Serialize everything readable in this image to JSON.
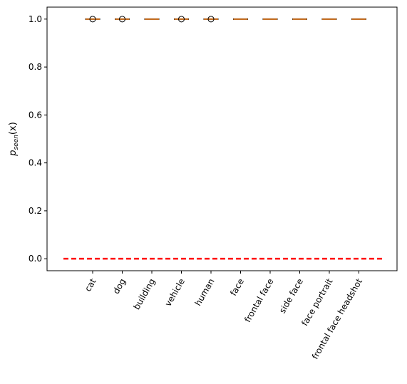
{
  "chart_data": {
    "type": "box",
    "title": "",
    "xlabel": "",
    "ylabel": {
      "base": "p",
      "subscript": "seen",
      "suffix": "(x)"
    },
    "ylim": [
      -0.05,
      1.05
    ],
    "yticks": [
      "0.0",
      "0.2",
      "0.4",
      "0.6",
      "0.8",
      "1.0"
    ],
    "categories": [
      "cat",
      "dog",
      "building",
      "vehicle",
      "human",
      "face",
      "frontal face",
      "side face",
      "face portrait",
      "frontal face headshot"
    ],
    "series": [
      {
        "boxes": [
          {
            "median": 1.0,
            "q1": 1.0,
            "q3": 1.0,
            "whisker_low": 1.0,
            "whisker_high": 1.0,
            "outliers": [
              1.0
            ]
          },
          {
            "median": 1.0,
            "q1": 1.0,
            "q3": 1.0,
            "whisker_low": 1.0,
            "whisker_high": 1.0,
            "outliers": [
              1.0
            ]
          },
          {
            "median": 1.0,
            "q1": 1.0,
            "q3": 1.0,
            "whisker_low": 1.0,
            "whisker_high": 1.0,
            "outliers": []
          },
          {
            "median": 1.0,
            "q1": 1.0,
            "q3": 1.0,
            "whisker_low": 1.0,
            "whisker_high": 1.0,
            "outliers": [
              1.0
            ]
          },
          {
            "median": 1.0,
            "q1": 1.0,
            "q3": 1.0,
            "whisker_low": 1.0,
            "whisker_high": 1.0,
            "outliers": [
              1.0
            ]
          },
          {
            "median": 1.0,
            "q1": 1.0,
            "q3": 1.0,
            "whisker_low": 1.0,
            "whisker_high": 1.0,
            "outliers": []
          },
          {
            "median": 1.0,
            "q1": 1.0,
            "q3": 1.0,
            "whisker_low": 1.0,
            "whisker_high": 1.0,
            "outliers": []
          },
          {
            "median": 1.0,
            "q1": 1.0,
            "q3": 1.0,
            "whisker_low": 1.0,
            "whisker_high": 1.0,
            "outliers": []
          },
          {
            "median": 1.0,
            "q1": 1.0,
            "q3": 1.0,
            "whisker_low": 1.0,
            "whisker_high": 1.0,
            "outliers": []
          },
          {
            "median": 1.0,
            "q1": 1.0,
            "q3": 1.0,
            "whisker_low": 1.0,
            "whisker_high": 1.0,
            "outliers": []
          }
        ]
      }
    ],
    "reference_line": {
      "y": 0.0,
      "style": "dashed",
      "color": "#ff0000"
    },
    "x_tick_rotation": 60,
    "grid": false,
    "colors": {
      "median": "#ff7f0e",
      "box": "#000000",
      "outlier": "#000000",
      "reference": "#ff0000"
    }
  }
}
